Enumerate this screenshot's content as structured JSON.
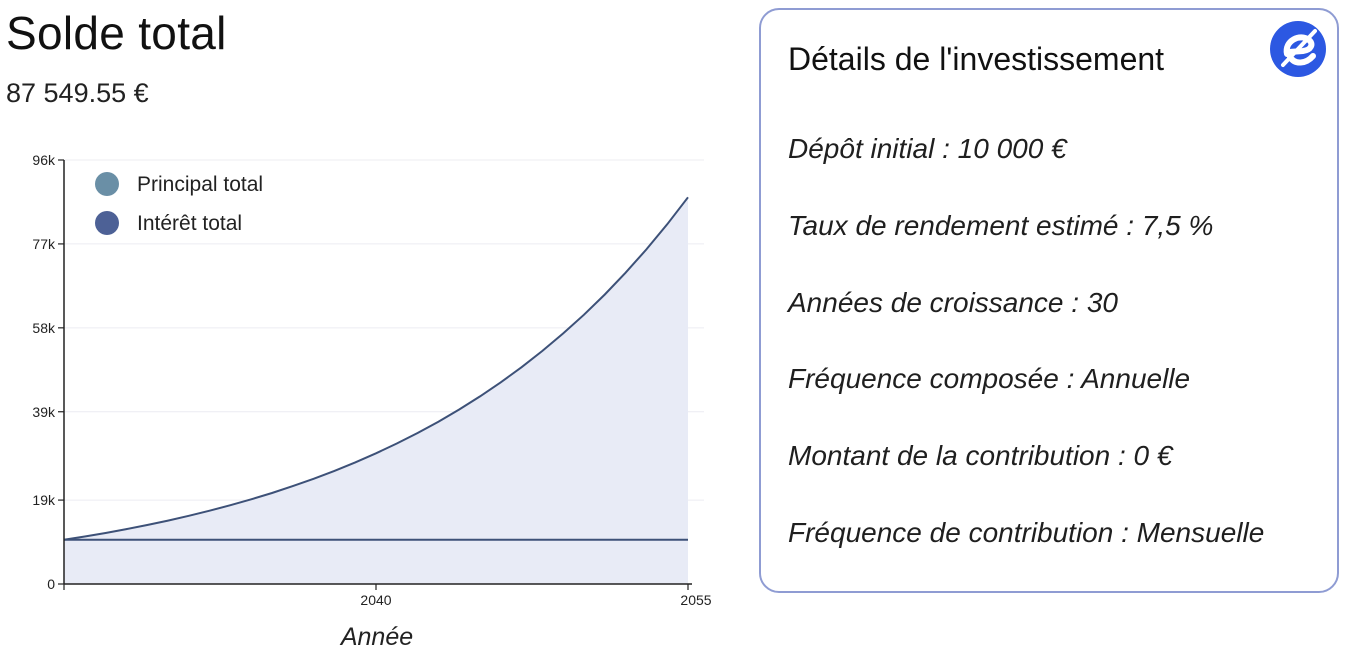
{
  "summary": {
    "title": "Solde total",
    "value": "87 549.55 €"
  },
  "details": {
    "title": "Détails de l'investissement",
    "logo_icon": "e-logo-icon",
    "items": [
      "Dépôt initial : 10 000 €",
      "Taux de rendement estimé : 7,5 %",
      "Années de croissance : 30",
      "Fréquence composée : Annuelle",
      "Montant de la contribution : 0 €",
      "Fréquence de contribution : Mensuelle"
    ]
  },
  "colors": {
    "principal": "#6a8fa6",
    "interest": "#4d6196",
    "line": "#3d5178",
    "fill": "#e8ebf6",
    "card_border": "#8f9cd3",
    "logo": "#2c58e2"
  },
  "chart_data": {
    "type": "area",
    "xlabel": "Année",
    "ylabel": "",
    "xlim": [
      2025,
      2055
    ],
    "ylim": [
      0,
      96000
    ],
    "x_ticks": [
      2040,
      2055
    ],
    "y_ticks": [
      0,
      19000,
      39000,
      58000,
      77000,
      96000
    ],
    "y_tick_labels": [
      "0",
      "19k",
      "39k",
      "58k",
      "77k",
      "96k"
    ],
    "legend_position": "top-left",
    "x": [
      2025,
      2026,
      2027,
      2028,
      2029,
      2030,
      2031,
      2032,
      2033,
      2034,
      2035,
      2036,
      2037,
      2038,
      2039,
      2040,
      2041,
      2042,
      2043,
      2044,
      2045,
      2046,
      2047,
      2048,
      2049,
      2050,
      2051,
      2052,
      2053,
      2054,
      2055
    ],
    "series": [
      {
        "name": "Principal total",
        "values": [
          10000,
          10000,
          10000,
          10000,
          10000,
          10000,
          10000,
          10000,
          10000,
          10000,
          10000,
          10000,
          10000,
          10000,
          10000,
          10000,
          10000,
          10000,
          10000,
          10000,
          10000,
          10000,
          10000,
          10000,
          10000,
          10000,
          10000,
          10000,
          10000,
          10000,
          10000
        ]
      },
      {
        "name": "Intérêt total",
        "values": [
          10000,
          10750,
          11556.25,
          12422.97,
          13354.69,
          14356.29,
          15433.02,
          16590.49,
          17834.78,
          19172.39,
          20610.32,
          22156.09,
          23817.8,
          25604.13,
          27524.44,
          29588.77,
          31807.93,
          34193.53,
          36758.04,
          39514.89,
          42478.51,
          45664.4,
          49089.23,
          52770.92,
          56728.74,
          60983.4,
          65557.15,
          70473.93,
          75759.48,
          81441.44,
          87549.55
        ]
      }
    ]
  }
}
